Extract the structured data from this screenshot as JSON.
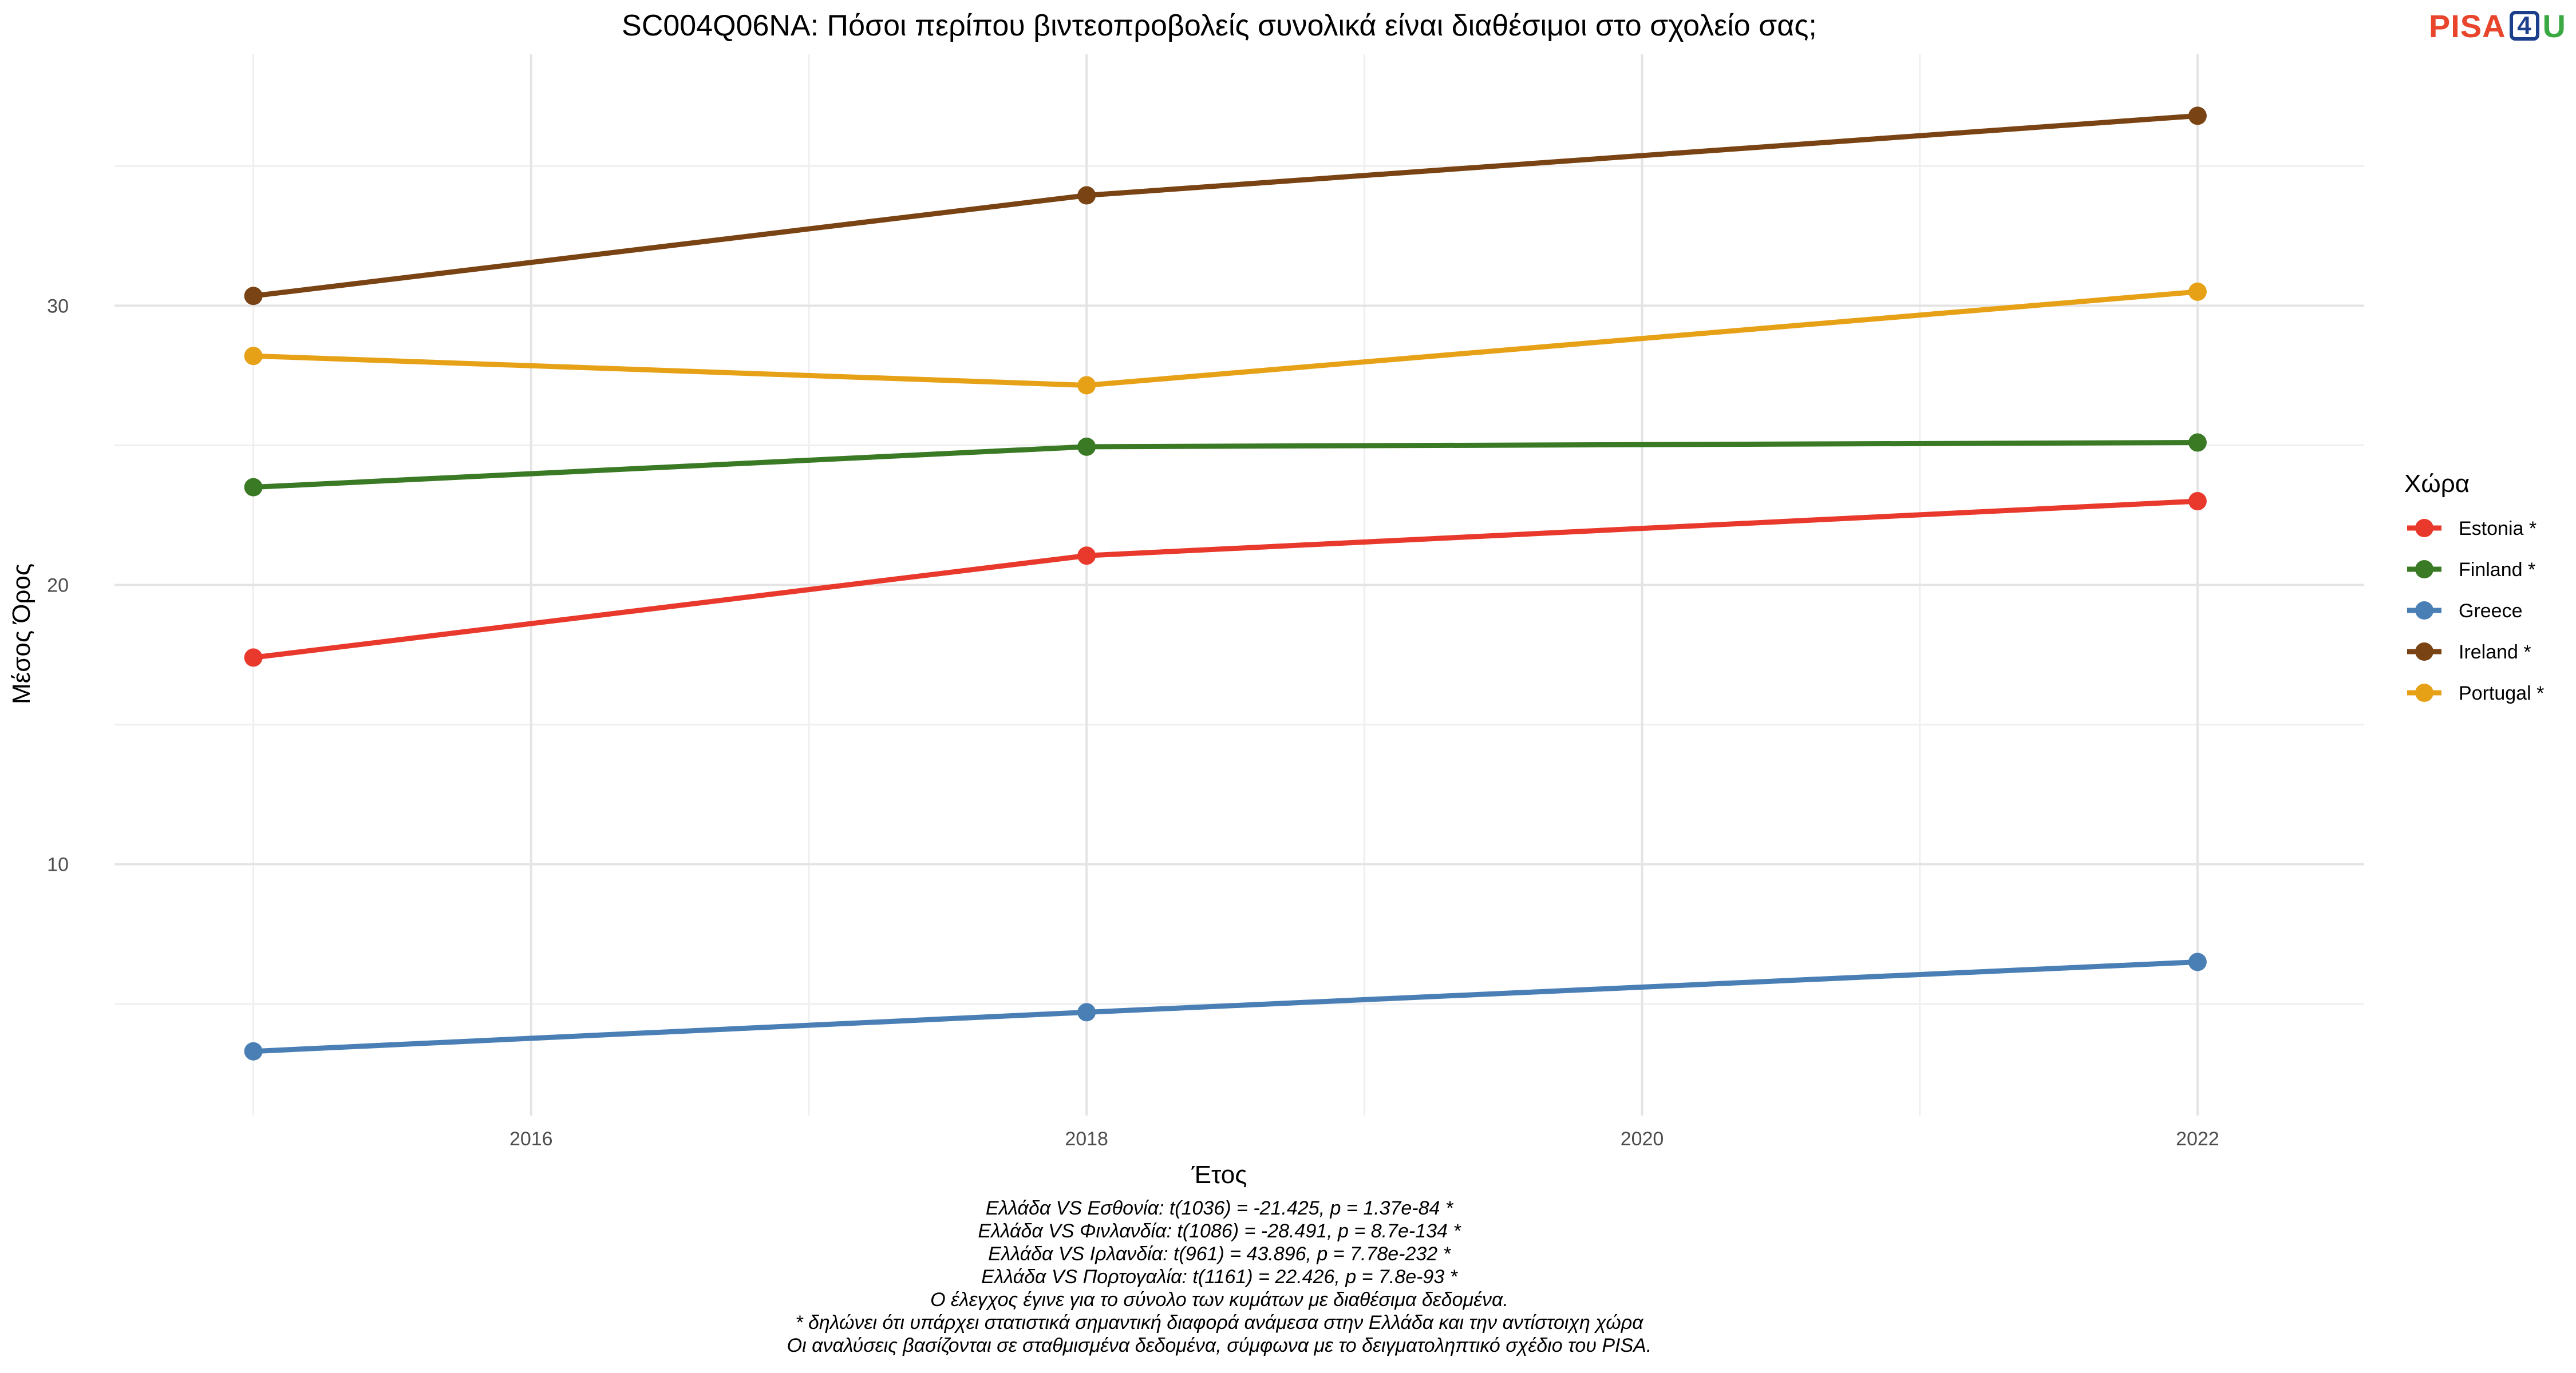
{
  "logo": {
    "part1": "PISA",
    "part2": "4",
    "part3": "U"
  },
  "chart_data": {
    "type": "line",
    "title": "SC004Q06NA: Πόσοι περίπου βιντεοπροβολείς συνολικά είναι διαθέσιμοι στο σχολείο σας;",
    "xlabel": "Έτος",
    "ylabel": "Μέσος Όρος",
    "xlim": [
      2014.5,
      2022.6
    ],
    "ylim": [
      1.0,
      39.0
    ],
    "x_ticks": [
      2016,
      2018,
      2020,
      2022
    ],
    "y_ticks": [
      10,
      20,
      30
    ],
    "grid": true,
    "legend": {
      "title": "Χώρα",
      "placement": "right"
    },
    "x": [
      2015,
      2018,
      2022
    ],
    "series": [
      {
        "name": "Estonia *",
        "color": "#e8392c",
        "values": [
          17.4,
          21.05,
          23.0
        ]
      },
      {
        "name": "Finland *",
        "color": "#3a7a25",
        "values": [
          23.5,
          24.95,
          25.1
        ]
      },
      {
        "name": "Greece",
        "color": "#4a7fb5",
        "values": [
          3.3,
          4.7,
          6.5
        ]
      },
      {
        "name": "Ireland *",
        "color": "#7a4313",
        "values": [
          30.35,
          33.95,
          36.8
        ]
      },
      {
        "name": "Portugal *",
        "color": "#e6a117",
        "values": [
          28.2,
          27.15,
          30.5
        ]
      }
    ],
    "caption": [
      "Ελλάδα VS Εσθονία: t(1036) = -21.425, p = 1.37e-84 *",
      "Ελλάδα VS Φινλανδία: t(1086) = -28.491, p = 8.7e-134 *",
      "Ελλάδα VS Ιρλανδία: t(961) = 43.896, p = 7.78e-232 *",
      "Ελλάδα VS Πορτογαλία: t(1161) = 22.426, p = 7.8e-93 *",
      "Ο έλεγχος έγινε για το σύνολο των κυμάτων με διαθέσιμα δεδομένα.",
      "* δηλώνει ότι υπάρχει στατιστικά σημαντική διαφορά ανάμεσα στην Ελλάδα και την αντίστοιχη χώρα",
      "Οι αναλύσεις βασίζονται σε σταθμισμένα δεδομένα, σύμφωνα με το δειγματοληπτικό σχέδιο του PISA."
    ]
  }
}
